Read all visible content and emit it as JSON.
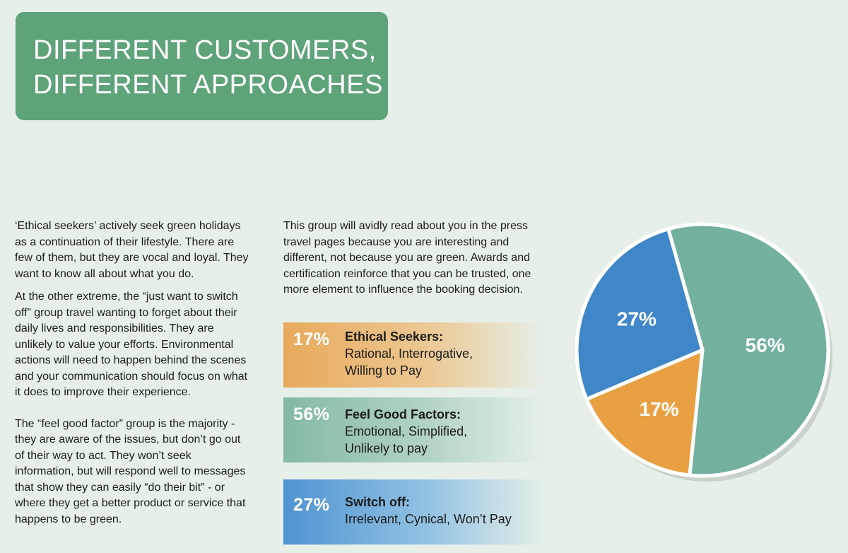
{
  "title": {
    "line1": "DIFFERENT CUSTOMERS,",
    "line2": "DIFFERENT APPROACHES"
  },
  "left_column": {
    "p1": "‘Ethical seekers’ actively seek green holidays as a continuation of their lifestyle. There are few of them, but they are vocal and loyal. They want to know all about what you do.",
    "p2": "At the other extreme, the “just want to switch off” group travel wanting to forget about their daily lives and responsibilities. They are unlikely to value your efforts. Environmental actions will need to happen behind the scenes and your communication should focus on what it does to improve their experience.",
    "p3": "The “feel good factor” group is the majority - they are aware of the issues, but don’t go out of their way to act. They won’t seek information, but will respond well to messages that show they can easily “do their bit” - or where they get a better product or service that happens to be green."
  },
  "middle_column": {
    "p1": "This group will avidly read about you in the press travel pages because you are interesting and different, not because you are green. Awards and certification reinforce that you can be trusted, one more element to influence the booking decision."
  },
  "segments": [
    {
      "pct": "17%",
      "name": "Ethical Seekers:",
      "traits": [
        "Rational, Interrogative,",
        "Willing to Pay"
      ]
    },
    {
      "pct": "56%",
      "name": "Feel Good Factors:",
      "traits": [
        "Emotional, Simplified,",
        "Unlikely to pay"
      ]
    },
    {
      "pct": "27%",
      "name": "Switch off:",
      "traits": [
        "Irrelevant, Cynical, Won’t Pay"
      ]
    }
  ],
  "chart_data": {
    "type": "pie",
    "title": "",
    "slices": [
      {
        "label": "56%",
        "value": 56,
        "color": "#74b09f"
      },
      {
        "label": "17%",
        "value": 17,
        "color": "#e9a042"
      },
      {
        "label": "27%",
        "value": 27,
        "color": "#3f87c9"
      }
    ]
  }
}
